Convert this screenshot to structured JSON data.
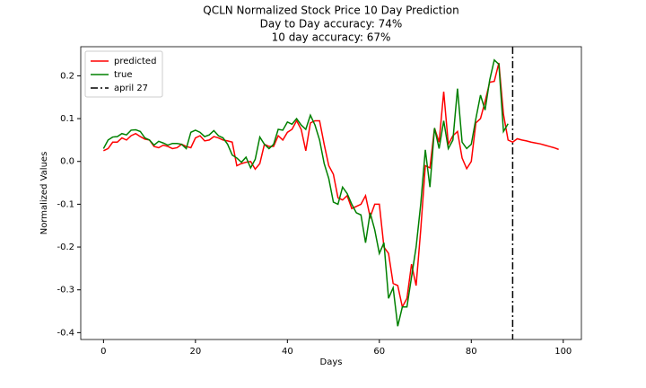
{
  "chart_data": {
    "type": "line",
    "title": [
      "QCLN Normalized Stock Price 10 Day Prediction",
      "Day to Day accuracy: 74%",
      "10 day accuracy: 67%"
    ],
    "x_label": "Days",
    "y_label": "Normalized Values",
    "x": [
      0,
      1,
      2,
      3,
      4,
      5,
      6,
      7,
      8,
      9,
      10,
      11,
      12,
      13,
      14,
      15,
      16,
      17,
      18,
      19,
      20,
      21,
      22,
      23,
      24,
      25,
      26,
      27,
      28,
      29,
      30,
      31,
      32,
      33,
      34,
      35,
      36,
      37,
      38,
      39,
      40,
      41,
      42,
      43,
      44,
      45,
      46,
      47,
      48,
      49,
      50,
      51,
      52,
      53,
      54,
      55,
      56,
      57,
      58,
      59,
      60,
      61,
      62,
      63,
      64,
      65,
      66,
      67,
      68,
      69,
      70,
      71,
      72,
      73,
      74,
      75,
      76,
      77,
      78,
      79,
      80,
      81,
      82,
      83,
      84,
      85,
      86,
      87,
      88,
      89,
      90,
      91,
      92,
      93,
      94,
      95,
      96,
      97,
      98,
      99
    ],
    "series": [
      {
        "name": "predicted",
        "color": "#ff0000",
        "values": [
          0.025,
          0.03,
          0.045,
          0.045,
          0.055,
          0.05,
          0.06,
          0.065,
          0.058,
          0.052,
          0.05,
          0.035,
          0.032,
          0.038,
          0.035,
          0.03,
          0.032,
          0.04,
          0.035,
          0.032,
          0.055,
          0.06,
          0.048,
          0.05,
          0.058,
          0.055,
          0.05,
          0.048,
          0.045,
          -0.01,
          -0.005,
          -0.002,
          0.0,
          -0.018,
          -0.005,
          0.04,
          0.035,
          0.035,
          0.06,
          0.05,
          0.068,
          0.075,
          0.095,
          0.075,
          0.025,
          0.09,
          0.095,
          0.095,
          0.04,
          -0.01,
          -0.03,
          -0.085,
          -0.09,
          -0.08,
          -0.11,
          -0.105,
          -0.1,
          -0.08,
          -0.13,
          -0.1,
          -0.1,
          -0.2,
          -0.215,
          -0.285,
          -0.29,
          -0.34,
          -0.32,
          -0.24,
          -0.29,
          -0.16,
          -0.01,
          -0.015,
          0.078,
          0.045,
          0.163,
          0.04,
          0.06,
          0.07,
          0.008,
          -0.017,
          0.0,
          0.09,
          0.1,
          0.14,
          0.185,
          0.187,
          0.23,
          0.11,
          0.05,
          0.045,
          0.053,
          0.05,
          0.048,
          0.045,
          0.043,
          0.041,
          0.038,
          0.035,
          0.032,
          0.028
        ]
      },
      {
        "name": "true",
        "color": "#008000",
        "values": [
          0.03,
          0.05,
          0.057,
          0.058,
          0.065,
          0.062,
          0.073,
          0.074,
          0.07,
          0.055,
          0.05,
          0.038,
          0.047,
          0.043,
          0.038,
          0.042,
          0.042,
          0.04,
          0.03,
          0.068,
          0.073,
          0.068,
          0.058,
          0.062,
          0.072,
          0.06,
          0.055,
          0.04,
          0.015,
          0.008,
          -0.002,
          0.01,
          -0.015,
          0.005,
          0.057,
          0.04,
          0.03,
          0.04,
          0.075,
          0.073,
          0.092,
          0.087,
          0.1,
          0.085,
          0.075,
          0.108,
          0.085,
          0.05,
          -0.005,
          -0.04,
          -0.095,
          -0.1,
          -0.06,
          -0.075,
          -0.1,
          -0.12,
          -0.125,
          -0.19,
          -0.12,
          -0.16,
          -0.215,
          -0.19,
          -0.32,
          -0.295,
          -0.385,
          -0.34,
          -0.34,
          -0.27,
          -0.2,
          -0.1,
          0.027,
          -0.06,
          0.078,
          0.03,
          0.095,
          0.03,
          0.05,
          0.17,
          0.045,
          0.03,
          0.04,
          0.1,
          0.155,
          0.12,
          0.19,
          0.237,
          0.227,
          0.07,
          0.088,
          null,
          null,
          null,
          null,
          null,
          null,
          null,
          null,
          null,
          null,
          null
        ]
      }
    ],
    "vline": {
      "x": 89,
      "name": "april 27",
      "color": "#000000"
    },
    "xlim": [
      -4.95,
      103.95
    ],
    "xticks": [
      0,
      20,
      40,
      60,
      80,
      100
    ],
    "ylim": [
      -0.416,
      0.268
    ],
    "yticks": [
      -0.4,
      -0.3,
      -0.2,
      -0.1,
      {
        "value": 0,
        "label": "0.0"
      },
      0.1,
      0.2
    ],
    "legend": "upper left",
    "grid": false
  }
}
